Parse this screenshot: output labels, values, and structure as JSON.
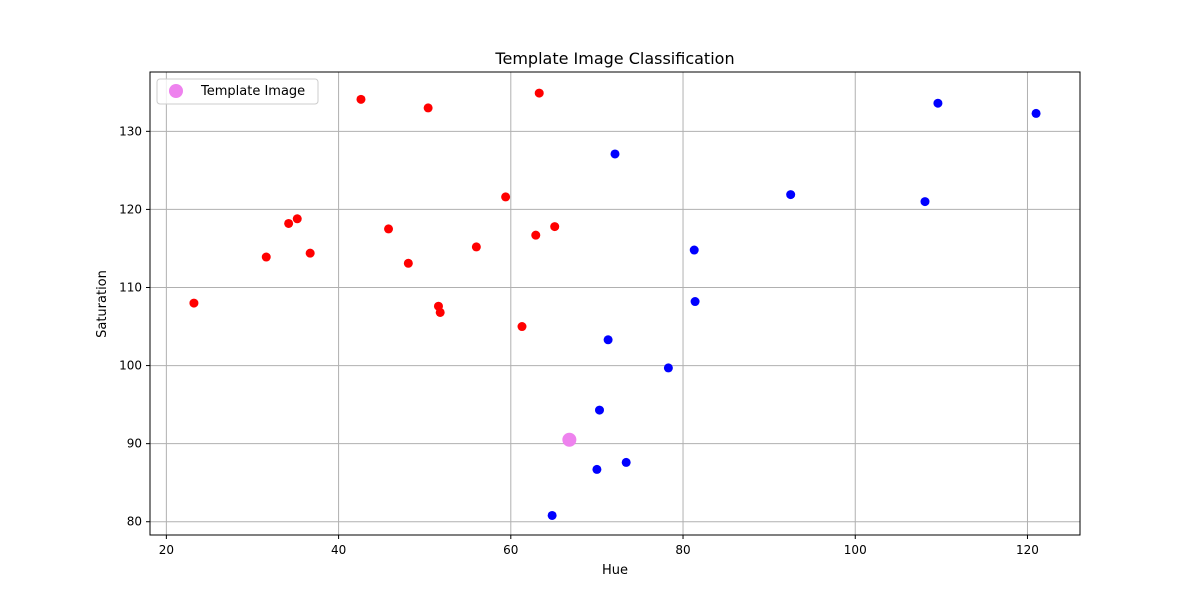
{
  "chart_data": {
    "type": "scatter",
    "title": "Template Image Classification",
    "xlabel": "Hue",
    "ylabel": "Saturation",
    "xlim": [
      18.1,
      126.1
    ],
    "ylim": [
      78.3,
      137.6
    ],
    "xticks": [
      20,
      40,
      60,
      80,
      100,
      120
    ],
    "yticks": [
      80,
      90,
      100,
      110,
      120,
      130
    ],
    "grid": true,
    "legend": {
      "position": "top-left",
      "entries": [
        "Template Image"
      ]
    },
    "series": [
      {
        "color": "#ff0000",
        "points": [
          [
            23.2,
            108.0
          ],
          [
            31.6,
            113.9
          ],
          [
            34.2,
            118.2
          ],
          [
            35.2,
            118.8
          ],
          [
            36.7,
            114.4
          ],
          [
            42.6,
            134.1
          ],
          [
            45.8,
            117.5
          ],
          [
            48.1,
            113.1
          ],
          [
            50.4,
            133.0
          ],
          [
            51.6,
            107.6
          ],
          [
            51.8,
            106.8
          ],
          [
            56.0,
            115.2
          ],
          [
            59.4,
            121.6
          ],
          [
            61.3,
            105.0
          ],
          [
            62.9,
            116.7
          ],
          [
            63.3,
            134.9
          ],
          [
            65.1,
            117.8
          ]
        ]
      },
      {
        "color": "#0000ff",
        "points": [
          [
            64.8,
            80.8
          ],
          [
            70.0,
            86.7
          ],
          [
            70.3,
            94.3
          ],
          [
            71.3,
            103.3
          ],
          [
            72.1,
            127.1
          ],
          [
            73.4,
            87.6
          ],
          [
            78.3,
            99.7
          ],
          [
            81.3,
            114.8
          ],
          [
            81.4,
            108.2
          ],
          [
            92.5,
            121.9
          ],
          [
            108.1,
            121.0
          ],
          [
            109.6,
            133.6
          ],
          [
            121.0,
            132.3
          ]
        ]
      },
      {
        "name": "Template Image",
        "color": "#ee82ee",
        "points": [
          [
            66.8,
            90.5
          ]
        ]
      }
    ]
  }
}
